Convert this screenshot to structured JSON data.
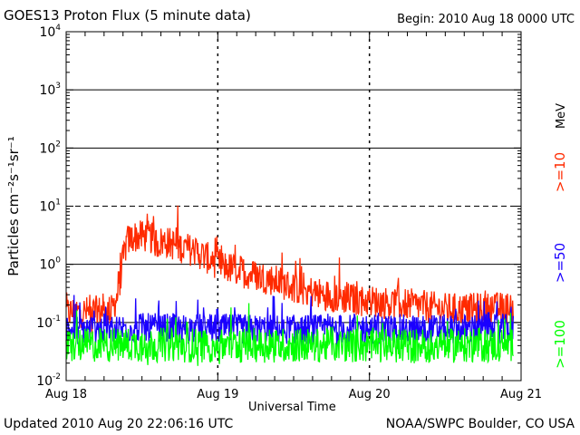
{
  "header": {
    "title": "GOES13 Proton Flux (5 minute data)",
    "begin": "Begin: 2010 Aug 18 0000 UTC"
  },
  "footer": {
    "updated": "Updated 2010 Aug 20 22:06:16 UTC",
    "source": "NOAA/SWPC Boulder, CO USA"
  },
  "chart_data": {
    "type": "line",
    "title": "GOES13 Proton Flux (5 minute data)",
    "xlabel": "Universal Time",
    "ylabel": "Particles cm⁻²s⁻¹sr⁻¹",
    "yscale": "log",
    "ylim": [
      0.01,
      10000
    ],
    "xlim_days": [
      0,
      3
    ],
    "x_tick_labels": [
      "Aug 18",
      "Aug 19",
      "Aug 20",
      "Aug 21"
    ],
    "y_tick_labels": [
      {
        "base": "10",
        "exp": "-2"
      },
      {
        "base": "10",
        "exp": "-1"
      },
      {
        "base": "10",
        "exp": "0"
      },
      {
        "base": "10",
        "exp": "1"
      },
      {
        "base": "10",
        "exp": "2"
      },
      {
        "base": "10",
        "exp": "3"
      },
      {
        "base": "10",
        "exp": "4"
      }
    ],
    "legend": {
      "unit": "MeV",
      "placement": "right"
    },
    "series": [
      {
        "name": ">=10",
        "color": "#ff2a00",
        "x_days": [
          0,
          0.15,
          0.3,
          0.34,
          0.37,
          0.4,
          0.45,
          0.55,
          0.6,
          0.65,
          0.75,
          0.85,
          0.95,
          1.05,
          1.2,
          1.35,
          1.5,
          1.7,
          1.9,
          2.1,
          2.3,
          2.5,
          2.7,
          2.95
        ],
        "values": [
          0.15,
          0.15,
          0.16,
          0.3,
          1.0,
          2.5,
          3.0,
          3.0,
          2.3,
          2.5,
          2.0,
          1.7,
          1.2,
          0.9,
          0.7,
          0.55,
          0.4,
          0.3,
          0.25,
          0.22,
          0.2,
          0.17,
          0.17,
          0.18
        ]
      },
      {
        "name": ">=50",
        "color": "#1a00ff",
        "x_days": [
          0,
          0.5,
          1.0,
          1.5,
          2.0,
          2.5,
          2.95
        ],
        "values": [
          0.075,
          0.08,
          0.078,
          0.075,
          0.077,
          0.076,
          0.078
        ]
      },
      {
        "name": ">=100",
        "color": "#00ff00",
        "x_days": [
          0,
          0.5,
          1.0,
          1.5,
          2.0,
          2.5,
          2.95
        ],
        "values": [
          0.04,
          0.042,
          0.04,
          0.041,
          0.04,
          0.04,
          0.041
        ]
      }
    ]
  }
}
